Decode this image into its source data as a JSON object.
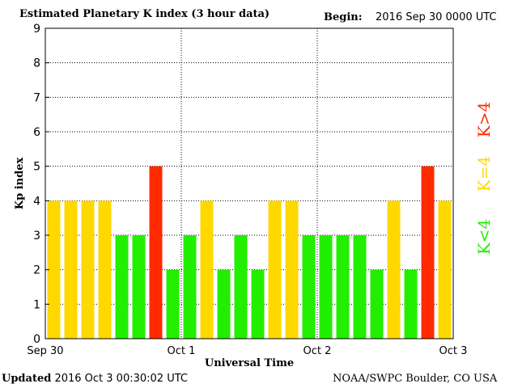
{
  "header": {
    "title": "Estimated Planetary K index (3 hour data)",
    "begin_label": "Begin:",
    "begin_value": "2016 Sep 30 0000 UTC"
  },
  "footer": {
    "updated_label": "Updated",
    "updated_value": "2016 Oct  3 00:30:02 UTC",
    "source": "NOAA/SWPC Boulder, CO USA"
  },
  "colors": {
    "low": "#22ee00",
    "storm_threshold": "#ffd800",
    "storm": "#ff2a00"
  },
  "chart_data": {
    "type": "bar",
    "title": "Estimated Planetary K index (3 hour data)",
    "xlabel": "Universal Time",
    "ylabel": "Kp index",
    "ylim": [
      0,
      9
    ],
    "yticks": [
      "0",
      "1",
      "2",
      "3",
      "4",
      "5",
      "6",
      "7",
      "8",
      "9"
    ],
    "xlim": [
      0,
      72
    ],
    "xticks": [
      {
        "x": 0,
        "label": "Sep 30"
      },
      {
        "x": 24,
        "label": "Oct 1"
      },
      {
        "x": 48,
        "label": "Oct 2"
      },
      {
        "x": 72,
        "label": "Oct 3"
      }
    ],
    "grid": true,
    "values": [
      4,
      4,
      4,
      4,
      3,
      3,
      5,
      2,
      3,
      4,
      2,
      3,
      2,
      4,
      4,
      3,
      3,
      3,
      3,
      2,
      4,
      2,
      5,
      4
    ],
    "legend": [
      {
        "label": "K<4",
        "color": "#22ee00"
      },
      {
        "label": "K=4",
        "color": "#ffd800"
      },
      {
        "label": "K>4",
        "color": "#ff2a00"
      }
    ]
  }
}
